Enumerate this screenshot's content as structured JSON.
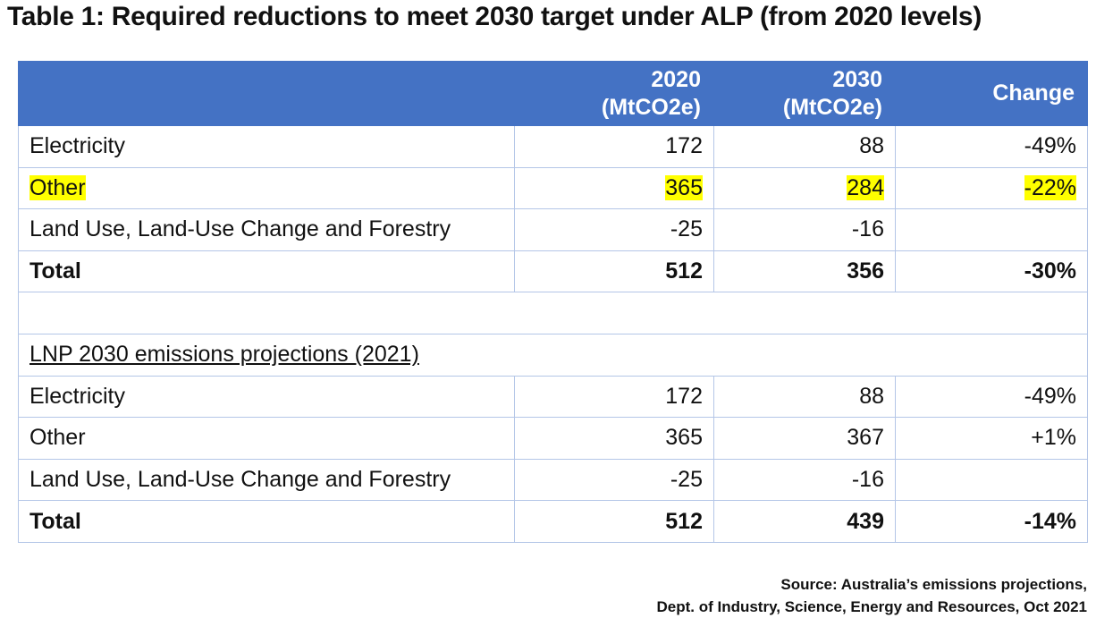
{
  "title": "Table 1: Required reductions to meet 2030 target under ALP (from 2020 levels)",
  "header": {
    "col2020_line1": "2020",
    "col2020_line2": "(MtCO2e)",
    "col2030_line1": "2030",
    "col2030_line2": "(MtCO2e)",
    "change": "Change"
  },
  "alp": {
    "rows": [
      {
        "label": "Electricity",
        "v2020": "172",
        "v2030": "88",
        "change": "-49%"
      },
      {
        "label": "Other",
        "v2020": "365",
        "v2030": "284",
        "change": "-22%"
      },
      {
        "label": "Land Use, Land-Use Change and Forestry",
        "v2020": "-25",
        "v2030": "-16",
        "change": ""
      },
      {
        "label": "Total",
        "v2020": "512",
        "v2030": "356",
        "change": "-30%"
      }
    ]
  },
  "lnp": {
    "heading": "LNP 2030 emissions projections (2021)",
    "rows": [
      {
        "label": "Electricity",
        "v2020": "172",
        "v2030": "88",
        "change": "-49%"
      },
      {
        "label": "Other",
        "v2020": "365",
        "v2030": "367",
        "change": "+1%"
      },
      {
        "label": "Land Use, Land-Use Change and Forestry",
        "v2020": "-25",
        "v2030": "-16",
        "change": ""
      },
      {
        "label": "Total",
        "v2020": "512",
        "v2030": "439",
        "change": "-14%"
      }
    ]
  },
  "source": {
    "line1": "Source: Australia’s emissions projections,",
    "line2": "Dept. of Industry, Science, Energy and Resources, Oct 2021"
  },
  "colors": {
    "header_bg": "#4472c4",
    "highlight": "#ffff00",
    "border": "#b4c6e7"
  }
}
